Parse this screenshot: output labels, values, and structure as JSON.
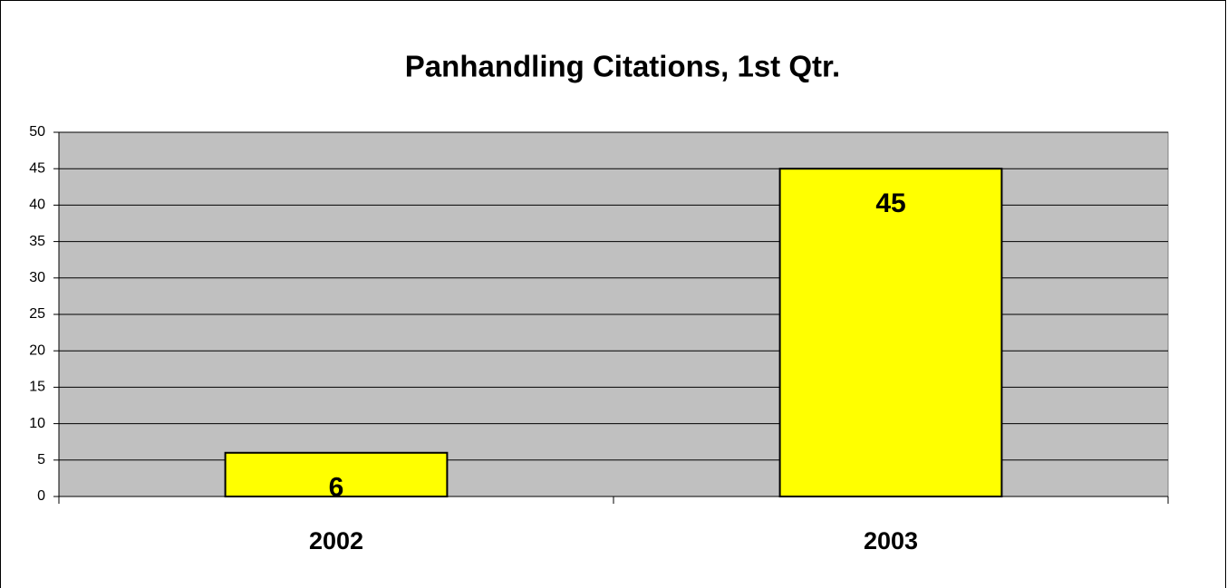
{
  "chart_data": {
    "type": "bar",
    "title": "Panhandling Citations, 1st Qtr.",
    "categories": [
      "2002",
      "2003"
    ],
    "values": [
      6,
      45
    ],
    "color": "#ffff00",
    "ylim": [
      0,
      50
    ],
    "yticks": [
      0,
      5,
      10,
      15,
      20,
      25,
      30,
      35,
      40,
      45,
      50
    ],
    "grid": true,
    "data_labels": true
  }
}
